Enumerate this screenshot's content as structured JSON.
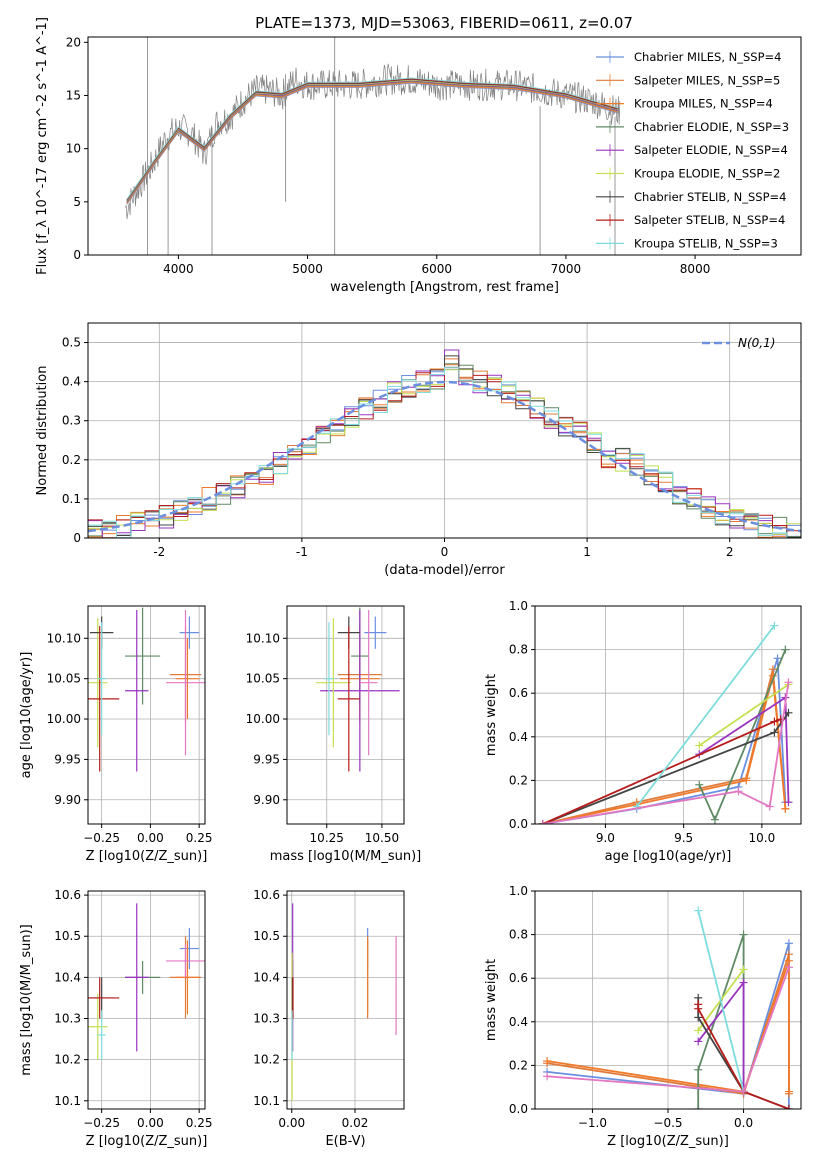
{
  "figure_title": "PLATE=1373, MJD=53063, FIBERID=0611, z=0.07",
  "series_colors": [
    "#6b8fe0",
    "#e07b3b",
    "#f07a2a",
    "#5f8a66",
    "#9a33bf",
    "#c4e050",
    "#444444",
    "#b71c1c",
    "#7fdcdc"
  ],
  "chart_data": [
    {
      "id": "spectrum",
      "type": "line",
      "xlabel": "wavelength [Angstrom, rest frame]",
      "ylabel": "Flux [f_λ 10^-17 erg cm^-2 s^-1 A^-1]",
      "xlim": [
        3300,
        8820
      ],
      "ylim": [
        0,
        20.5
      ],
      "xticks": [
        4000,
        5000,
        6000,
        7000,
        8000
      ],
      "yticks": [
        0,
        5,
        10,
        15,
        20
      ],
      "legend": "top-right",
      "data_spectrum": {
        "x": [
          3600,
          3700,
          3800,
          3900,
          4000,
          4100,
          4200,
          4300,
          4400,
          4500,
          4600,
          4700,
          4800,
          4900,
          5000,
          5200,
          5400,
          5600,
          5800,
          6000,
          6200,
          6400,
          6600,
          6800,
          7000,
          7200,
          7400
        ],
        "y": [
          4.5,
          6.5,
          8.5,
          11.0,
          12.0,
          11.5,
          9.5,
          12.5,
          13.0,
          14.5,
          15.5,
          15.5,
          15.0,
          16.5,
          16.0,
          16.0,
          16.0,
          16.5,
          16.5,
          16.0,
          16.0,
          16.0,
          16.0,
          15.5,
          15.0,
          14.5,
          13.5
        ],
        "color": "#808080"
      },
      "models": [
        {
          "name": "Chabrier MILES",
          "nssp": "4",
          "color": "#6b8fe0"
        },
        {
          "name": "Salpeter MILES",
          "nssp": "5",
          "color": "#e07b3b"
        },
        {
          "name": "Kroupa MILES",
          "nssp": "4",
          "color": "#f07a2a"
        },
        {
          "name": "Chabrier ELODIE",
          "nssp": "3",
          "color": "#5f8a66"
        },
        {
          "name": "Salpeter ELODIE",
          "nssp": "4",
          "color": "#9a33bf"
        },
        {
          "name": "Kroupa ELODIE",
          "nssp": "2",
          "color": "#c4e050"
        },
        {
          "name": "Chabrier STELIB",
          "nssp": "4",
          "color": "#444444"
        },
        {
          "name": "Salpeter STELIB",
          "nssp": "4",
          "color": "#b71c1c"
        },
        {
          "name": "Kroupa STELIB",
          "nssp": "3",
          "color": "#7fdcdc"
        }
      ],
      "model_curve": {
        "x": [
          3600,
          3800,
          4000,
          4200,
          4400,
          4600,
          4800,
          5000,
          5400,
          5800,
          6200,
          6600,
          7000,
          7400
        ],
        "y": [
          5.0,
          8.5,
          11.8,
          10.0,
          13.0,
          15.2,
          15.0,
          16.0,
          16.0,
          16.4,
          16.0,
          15.8,
          15.0,
          13.6
        ]
      },
      "legend_label_suffix": "N_SSP="
    },
    {
      "id": "residuals",
      "type": "step",
      "xlabel": "(data-model)/error",
      "ylabel": "Normed distribution",
      "xlim": [
        -2.5,
        2.5
      ],
      "ylim": [
        0,
        0.55
      ],
      "xticks": [
        -2,
        -1,
        0,
        1,
        2
      ],
      "yticks": [
        0.0,
        0.1,
        0.2,
        0.3,
        0.4,
        0.5
      ],
      "grid": true,
      "legend": "top-right",
      "gaussian": {
        "name": "N(0,1)",
        "color": "#6b8fe0"
      },
      "bin_width": 0.1,
      "histogram_bin_left_edges": [
        -2.5,
        -2.4,
        -2.3,
        -2.2,
        -2.1,
        -2.0,
        -1.9,
        -1.8,
        -1.7,
        -1.6,
        -1.5,
        -1.4,
        -1.3,
        -1.2,
        -1.1,
        -1.0,
        -0.9,
        -0.8,
        -0.7,
        -0.6,
        -0.5,
        -0.4,
        -0.3,
        -0.2,
        -0.1,
        0.0,
        0.1,
        0.2,
        0.3,
        0.4,
        0.5,
        0.6,
        0.7,
        0.8,
        0.9,
        1.0,
        1.1,
        1.2,
        1.3,
        1.4,
        1.5,
        1.6,
        1.7,
        1.8,
        1.9,
        2.0,
        2.1,
        2.2,
        2.3,
        2.4
      ],
      "histogram_reference": [
        0.02,
        0.025,
        0.03,
        0.04,
        0.05,
        0.055,
        0.07,
        0.08,
        0.1,
        0.11,
        0.13,
        0.14,
        0.16,
        0.19,
        0.21,
        0.24,
        0.26,
        0.29,
        0.31,
        0.33,
        0.35,
        0.37,
        0.39,
        0.4,
        0.41,
        0.46,
        0.42,
        0.4,
        0.39,
        0.37,
        0.35,
        0.33,
        0.31,
        0.29,
        0.27,
        0.24,
        0.21,
        0.2,
        0.19,
        0.16,
        0.14,
        0.11,
        0.1,
        0.08,
        0.06,
        0.05,
        0.04,
        0.03,
        0.025,
        0.02
      ]
    },
    {
      "id": "age_vs_Z",
      "type": "errorbar",
      "xlabel": "Z [log10(Z/Z_sun)]",
      "ylabel": "age [log10(age/yr)]",
      "xlim": [
        -0.32,
        0.28
      ],
      "ylim": [
        9.87,
        10.14
      ],
      "xticks": [
        -0.25,
        0.0,
        0.25
      ],
      "xtick_labels": [
        "−0.25",
        "0.00",
        "0.25"
      ],
      "xtick_minor": [
        -0.25,
        -0.125,
        0.0,
        0.125,
        0.25
      ],
      "xtick_labels_all": [
        "−0.25",
        "0.00",
        "0.25"
      ],
      "yticks": [
        9.9,
        9.95,
        10.0,
        10.05,
        10.1
      ],
      "ytick_labels": [
        "9.90",
        "9.95",
        "10.00",
        "10.05",
        "10.10"
      ],
      "xtick_label_text": [
        "−0.25",
        "−0.00",
        "0.25"
      ],
      "points": [
        {
          "x": 0.2,
          "y": 10.107,
          "xerr": 0.05,
          "yerr": 0.02,
          "color": "#6b8fe0"
        },
        {
          "x": 0.18,
          "y": 10.055,
          "xerr": 0.08,
          "yerr": 0.06,
          "color": "#e07b3b"
        },
        {
          "x": 0.19,
          "y": 10.05,
          "xerr": 0.06,
          "yerr": 0.05,
          "color": "#f07a2a"
        },
        {
          "x": -0.04,
          "y": 10.078,
          "xerr": 0.09,
          "yerr": 0.06,
          "color": "#5f8a66"
        },
        {
          "x": -0.07,
          "y": 10.035,
          "xerr": 0.06,
          "yerr": 0.1,
          "color": "#9a33bf"
        },
        {
          "x": -0.27,
          "y": 10.045,
          "xerr": 0.05,
          "yerr": 0.08,
          "color": "#c4e050"
        },
        {
          "x": -0.25,
          "y": 10.107,
          "xerr": 0.06,
          "yerr": 0.02,
          "color": "#444444"
        },
        {
          "x": -0.26,
          "y": 10.025,
          "xerr": 0.1,
          "yerr": 0.09,
          "color": "#b71c1c"
        },
        {
          "x": -0.25,
          "y": 10.05,
          "xerr": 0.02,
          "yerr": 0.07,
          "color": "#7fdcdc"
        },
        {
          "x": 0.18,
          "y": 10.045,
          "xerr": 0.1,
          "yerr": 0.09,
          "color": "#e377c2"
        }
      ]
    },
    {
      "id": "age_vs_mass",
      "type": "errorbar",
      "xlabel": "mass [log10(M/M_sun)]",
      "ylabel": "",
      "xlim": [
        10.07,
        10.6
      ],
      "ylim": [
        9.87,
        10.14
      ],
      "xticks": [
        10.25,
        10.5
      ],
      "xtick_labels": [
        "10.25",
        "10.50"
      ],
      "yticks": [
        9.9,
        9.95,
        10.0,
        10.05,
        10.1
      ],
      "ytick_labels": [
        "9.90",
        "9.95",
        "10.00",
        "10.05",
        "10.10"
      ],
      "points": [
        {
          "x": 10.47,
          "y": 10.107,
          "xerr": 0.05,
          "yerr": 0.02,
          "color": "#6b8fe0"
        },
        {
          "x": 10.4,
          "y": 10.055,
          "xerr": 0.1,
          "yerr": 0.06,
          "color": "#e07b3b"
        },
        {
          "x": 10.4,
          "y": 10.05,
          "xerr": 0.09,
          "yerr": 0.05,
          "color": "#f07a2a"
        },
        {
          "x": 10.4,
          "y": 10.078,
          "xerr": 0.04,
          "yerr": 0.06,
          "color": "#5f8a66"
        },
        {
          "x": 10.4,
          "y": 10.035,
          "xerr": 0.18,
          "yerr": 0.1,
          "color": "#9a33bf"
        },
        {
          "x": 10.28,
          "y": 10.045,
          "xerr": 0.08,
          "yerr": 0.08,
          "color": "#c4e050"
        },
        {
          "x": 10.35,
          "y": 10.107,
          "xerr": 0.05,
          "yerr": 0.02,
          "color": "#444444"
        },
        {
          "x": 10.35,
          "y": 10.025,
          "xerr": 0.05,
          "yerr": 0.09,
          "color": "#b71c1c"
        },
        {
          "x": 10.26,
          "y": 10.05,
          "xerr": 0.02,
          "yerr": 0.07,
          "color": "#7fdcdc"
        },
        {
          "x": 10.44,
          "y": 10.045,
          "xerr": 0.04,
          "yerr": 0.09,
          "color": "#e377c2"
        }
      ]
    },
    {
      "id": "massweight_vs_age",
      "type": "line",
      "xlabel": "age [log10(age/yr)]",
      "ylabel": "mass weight",
      "xlim": [
        8.55,
        10.25
      ],
      "ylim": [
        0.0,
        1.0
      ],
      "xticks": [
        9.0,
        9.5,
        10.0
      ],
      "xtick_labels": [
        "9.0",
        "9.5",
        "10.0"
      ],
      "yticks": [
        0.0,
        0.2,
        0.4,
        0.6,
        0.8,
        1.0
      ],
      "ytick_labels": [
        "0.0",
        "0.2",
        "0.4",
        "0.6",
        "0.8",
        "1.0"
      ],
      "series": [
        {
          "color": "#6b8fe0",
          "x": [
            8.6,
            9.2,
            9.85,
            10.1,
            10.15
          ],
          "y": [
            0.0,
            0.07,
            0.17,
            0.76,
            0.1
          ]
        },
        {
          "color": "#e07b3b",
          "x": [
            8.6,
            9.2,
            9.9,
            10.07,
            10.15
          ],
          "y": [
            0.0,
            0.1,
            0.21,
            0.71,
            0.07
          ]
        },
        {
          "color": "#f07a2a",
          "x": [
            8.6,
            9.2,
            9.9,
            10.07,
            10.15
          ],
          "y": [
            0.0,
            0.09,
            0.2,
            0.68,
            0.07
          ]
        },
        {
          "color": "#5f8a66",
          "x": [
            9.6,
            9.7,
            10.15
          ],
          "y": [
            0.18,
            0.02,
            0.8
          ]
        },
        {
          "color": "#9a33bf",
          "x": [
            9.6,
            10.15,
            10.17
          ],
          "y": [
            0.32,
            0.58,
            0.1
          ]
        },
        {
          "color": "#c4e050",
          "x": [
            9.6,
            10.17
          ],
          "y": [
            0.36,
            0.64
          ]
        },
        {
          "color": "#444444",
          "x": [
            8.6,
            10.08,
            10.17
          ],
          "y": [
            0.0,
            0.42,
            0.51
          ]
        },
        {
          "color": "#b71c1c",
          "x": [
            8.6,
            10.08,
            10.12
          ],
          "y": [
            0.0,
            0.47,
            0.48
          ]
        },
        {
          "color": "#7fdcdc",
          "x": [
            9.2,
            10.08
          ],
          "y": [
            0.08,
            0.91
          ]
        },
        {
          "color": "#e377c2",
          "x": [
            8.6,
            9.85,
            10.05,
            10.17
          ],
          "y": [
            0.0,
            0.15,
            0.08,
            0.65
          ]
        }
      ]
    },
    {
      "id": "mass_vs_Z",
      "type": "errorbar",
      "xlabel": "Z [log10(Z/Z_sun)]",
      "ylabel": "mass [log10(M/M_sun)]",
      "xlim": [
        -0.32,
        0.28
      ],
      "ylim": [
        10.08,
        10.61
      ],
      "xticks": [
        -0.25,
        0.0,
        0.25
      ],
      "xtick_labels": [
        "−0.25",
        "0.00",
        "0.25"
      ],
      "yticks": [
        10.1,
        10.2,
        10.3,
        10.4,
        10.5,
        10.6
      ],
      "ytick_labels": [
        "10.1",
        "10.2",
        "10.3",
        "10.4",
        "10.5",
        "10.6"
      ],
      "points": [
        {
          "x": 0.2,
          "y": 10.47,
          "xerr": 0.05,
          "yerr": 0.05,
          "color": "#6b8fe0"
        },
        {
          "x": 0.18,
          "y": 10.4,
          "xerr": 0.08,
          "yerr": 0.1,
          "color": "#e07b3b"
        },
        {
          "x": 0.19,
          "y": 10.4,
          "xerr": 0.06,
          "yerr": 0.09,
          "color": "#f07a2a"
        },
        {
          "x": -0.04,
          "y": 10.4,
          "xerr": 0.09,
          "yerr": 0.04,
          "color": "#5f8a66"
        },
        {
          "x": -0.07,
          "y": 10.4,
          "xerr": 0.06,
          "yerr": 0.18,
          "color": "#9a33bf"
        },
        {
          "x": -0.27,
          "y": 10.28,
          "xerr": 0.05,
          "yerr": 0.08,
          "color": "#c4e050"
        },
        {
          "x": -0.25,
          "y": 10.35,
          "xerr": 0.06,
          "yerr": 0.05,
          "color": "#444444"
        },
        {
          "x": -0.26,
          "y": 10.35,
          "xerr": 0.1,
          "yerr": 0.05,
          "color": "#b71c1c"
        },
        {
          "x": -0.25,
          "y": 10.26,
          "xerr": 0.02,
          "yerr": 0.06,
          "color": "#7fdcdc"
        },
        {
          "x": 0.18,
          "y": 10.44,
          "xerr": 0.1,
          "yerr": 0.04,
          "color": "#e377c2"
        }
      ]
    },
    {
      "id": "mass_vs_EBV",
      "type": "errorbar",
      "xlabel": "E(B-V)",
      "ylabel": "",
      "xlim": [
        -0.0015,
        0.0355
      ],
      "ylim": [
        10.08,
        10.61
      ],
      "xticks": [
        0.0,
        0.02
      ],
      "xtick_labels": [
        "0.00",
        "0.02"
      ],
      "yticks": [
        10.1,
        10.2,
        10.3,
        10.4,
        10.5,
        10.6
      ],
      "ytick_labels": [
        "10.1",
        "10.2",
        "10.3",
        "10.4",
        "10.5",
        "10.6"
      ],
      "points": [
        {
          "x": 0.024,
          "y": 10.47,
          "xerr": 0.0,
          "yerr": 0.05,
          "color": "#6b8fe0"
        },
        {
          "x": 0.024,
          "y": 10.4,
          "xerr": 0.0,
          "yerr": 0.1,
          "color": "#e07b3b"
        },
        {
          "x": 0.024,
          "y": 10.4,
          "xerr": 0.0,
          "yerr": 0.09,
          "color": "#f07a2a"
        },
        {
          "x": 0.0003,
          "y": 10.4,
          "xerr": 0.0,
          "yerr": 0.04,
          "color": "#5f8a66"
        },
        {
          "x": 0.0003,
          "y": 10.4,
          "xerr": 0.0,
          "yerr": 0.18,
          "color": "#9a33bf"
        },
        {
          "x": 0.0001,
          "y": 10.28,
          "xerr": 0.0,
          "yerr": 0.18,
          "color": "#c4e050"
        },
        {
          "x": 0.0002,
          "y": 10.35,
          "xerr": 0.0,
          "yerr": 0.05,
          "color": "#444444"
        },
        {
          "x": 0.0004,
          "y": 10.35,
          "xerr": 0.0,
          "yerr": 0.05,
          "color": "#b71c1c"
        },
        {
          "x": 0.0001,
          "y": 10.26,
          "xerr": 0.0,
          "yerr": 0.06,
          "color": "#7fdcdc"
        },
        {
          "x": 0.033,
          "y": 10.38,
          "xerr": 0.0,
          "yerr": 0.12,
          "color": "#e377c2"
        }
      ]
    },
    {
      "id": "massweight_vs_Z",
      "type": "line",
      "xlabel": "Z [log10(Z/Z_sun)]",
      "ylabel": "mass weight",
      "xlim": [
        -1.38,
        0.38
      ],
      "ylim": [
        0.0,
        1.0
      ],
      "xticks": [
        -1.0,
        -0.5,
        0.0
      ],
      "xtick_labels": [
        "−1.0",
        "−0.5",
        "0.0"
      ],
      "yticks": [
        0.0,
        0.2,
        0.4,
        0.6,
        0.8,
        1.0
      ],
      "ytick_labels": [
        "0.0",
        "0.2",
        "0.4",
        "0.6",
        "0.8",
        "1.0"
      ],
      "series": [
        {
          "color": "#6b8fe0",
          "x": [
            -1.3,
            0.0,
            0.3,
            0.3
          ],
          "y": [
            0.17,
            0.07,
            0.76,
            0.0
          ]
        },
        {
          "color": "#e07b3b",
          "x": [
            -1.3,
            0.0,
            0.3,
            0.3
          ],
          "y": [
            0.21,
            0.07,
            0.71,
            0.07
          ]
        },
        {
          "color": "#f07a2a",
          "x": [
            -1.3,
            0.0,
            0.3,
            0.3
          ],
          "y": [
            0.22,
            0.08,
            0.68,
            0.08
          ]
        },
        {
          "color": "#5f8a66",
          "x": [
            -0.3,
            -0.3,
            0.0,
            0.0
          ],
          "y": [
            0.0,
            0.18,
            0.8,
            0.08
          ]
        },
        {
          "color": "#9a33bf",
          "x": [
            -0.3,
            0.0,
            0.0
          ],
          "y": [
            0.31,
            0.58,
            0.08
          ]
        },
        {
          "color": "#c4e050",
          "x": [
            -0.3,
            0.0
          ],
          "y": [
            0.36,
            0.64
          ]
        },
        {
          "color": "#444444",
          "x": [
            -0.3,
            -0.3,
            0.0,
            0.3
          ],
          "y": [
            0.51,
            0.42,
            0.08,
            0.0
          ]
        },
        {
          "color": "#b71c1c",
          "x": [
            -0.3,
            -0.3,
            0.0,
            0.3
          ],
          "y": [
            0.48,
            0.46,
            0.08,
            0.0
          ]
        },
        {
          "color": "#7fdcdc",
          "x": [
            -0.3,
            0.0
          ],
          "y": [
            0.91,
            0.08
          ]
        },
        {
          "color": "#e377c2",
          "x": [
            -1.3,
            0.0,
            0.3
          ],
          "y": [
            0.15,
            0.08,
            0.65
          ]
        }
      ]
    }
  ]
}
